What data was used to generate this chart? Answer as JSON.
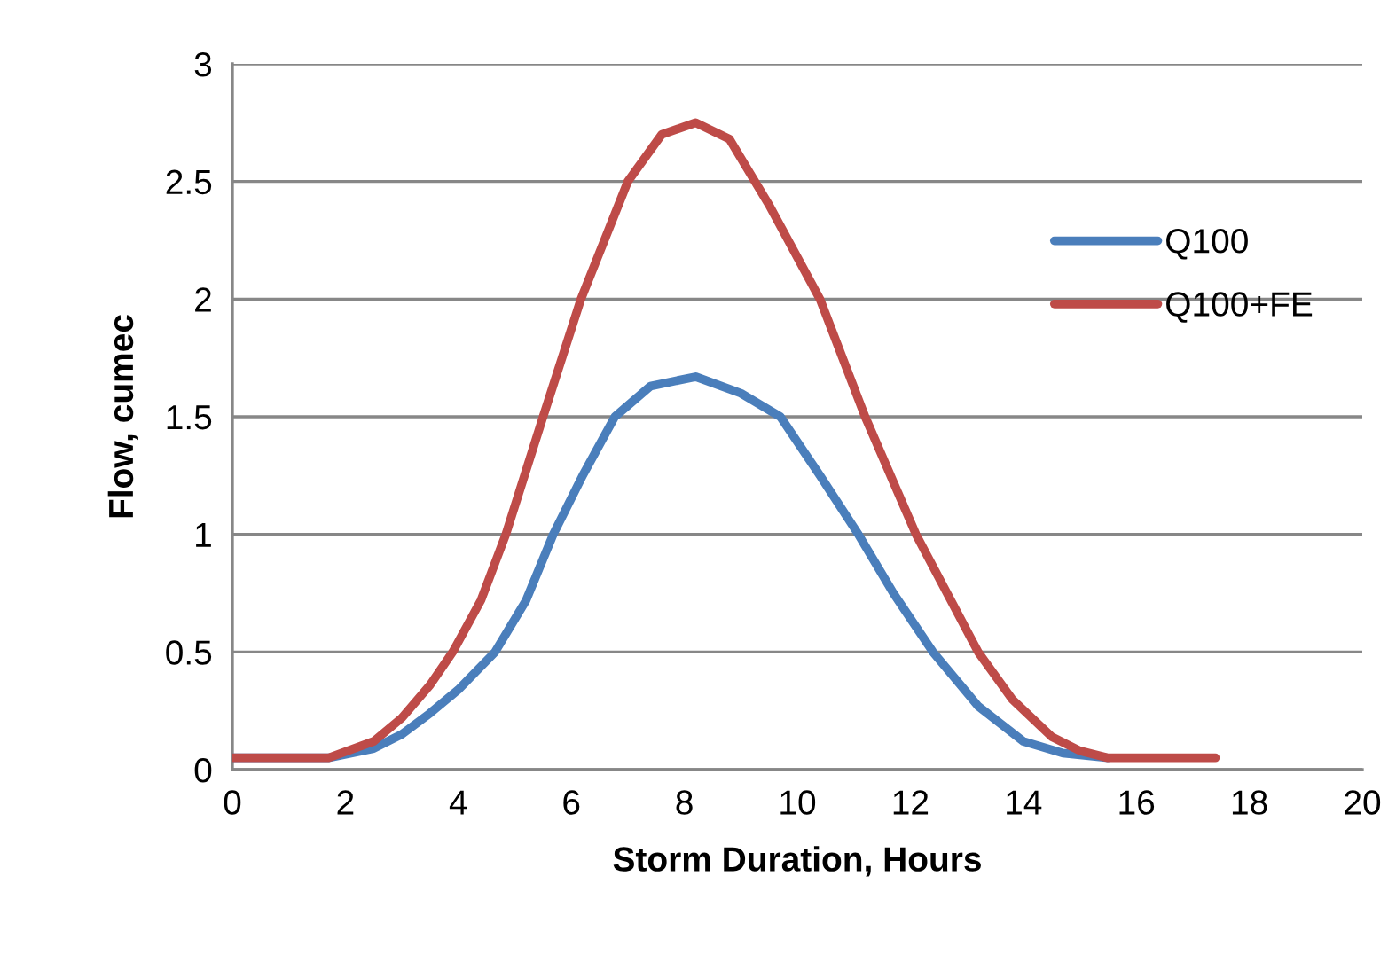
{
  "chart_data": {
    "type": "line",
    "xlabel": "Storm Duration, Hours",
    "ylabel": "Flow, cumec",
    "xlim": [
      0,
      20
    ],
    "xticks": [
      0,
      2,
      4,
      6,
      8,
      10,
      12,
      14,
      16,
      18,
      20
    ],
    "ylim": [
      0,
      3
    ],
    "yticks": [
      0,
      0.5,
      1,
      1.5,
      2,
      2.5,
      3
    ],
    "grid": "y",
    "legend": "right",
    "marker": "none",
    "line_style": "solid",
    "series": [
      {
        "name": "Q100",
        "color": "#4a7ebb",
        "x": [
          0,
          1.7,
          2.5,
          3,
          3.5,
          4,
          4.65,
          5.2,
          5.68,
          6.2,
          6.77,
          7.4,
          8.2,
          9,
          9.7,
          10.4,
          11.08,
          11.7,
          12.4,
          13.2,
          14,
          14.7,
          15.5
        ],
        "values": [
          0.05,
          0.05,
          0.09,
          0.15,
          0.24,
          0.34,
          0.5,
          0.72,
          1.0,
          1.25,
          1.5,
          1.63,
          1.67,
          1.6,
          1.5,
          1.25,
          1.0,
          0.75,
          0.5,
          0.27,
          0.12,
          0.07,
          0.05
        ]
      },
      {
        "name": "Q100+FE",
        "color": "#be4b48",
        "x": [
          0,
          1,
          1.7,
          2.5,
          3,
          3.5,
          3.9,
          4.4,
          4.84,
          5.5,
          6.17,
          7,
          7.6,
          8.2,
          8.8,
          9.5,
          10.4,
          11.2,
          12.1,
          13.2,
          13.8,
          14.5,
          15,
          15.5,
          16.5,
          17.4
        ],
        "values": [
          0.05,
          0.05,
          0.05,
          0.12,
          0.22,
          0.36,
          0.5,
          0.72,
          1.0,
          1.5,
          2.0,
          2.5,
          2.7,
          2.75,
          2.68,
          2.4,
          2.0,
          1.5,
          1.0,
          0.5,
          0.3,
          0.14,
          0.08,
          0.05,
          0.05,
          0.05
        ]
      }
    ]
  }
}
